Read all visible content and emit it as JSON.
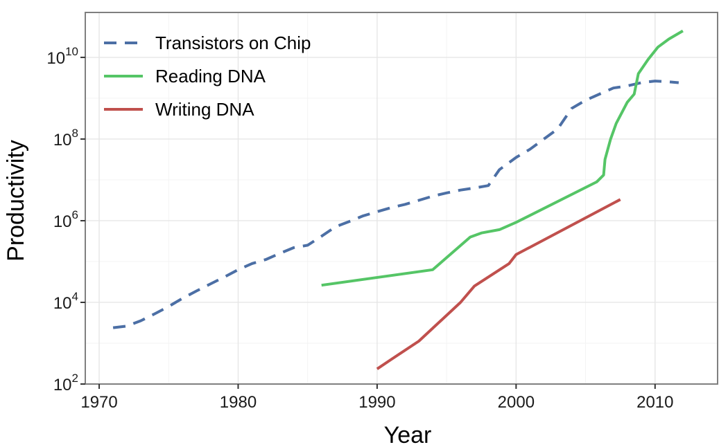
{
  "chart_data": {
    "type": "line",
    "title": "",
    "xlabel": "Year",
    "ylabel": "Productivity",
    "xlim": [
      1969,
      2014.5
    ],
    "ylim": [
      2,
      11.1
    ],
    "yscale": "log10",
    "x_ticks": [
      {
        "value": 1970,
        "label": "1970"
      },
      {
        "value": 1980,
        "label": "1980"
      },
      {
        "value": 1990,
        "label": "1990"
      },
      {
        "value": 2000,
        "label": "2000"
      },
      {
        "value": 2010,
        "label": "2010"
      }
    ],
    "y_ticks": [
      {
        "value": 2,
        "base": "10",
        "exp": "2"
      },
      {
        "value": 4,
        "base": "10",
        "exp": "4"
      },
      {
        "value": 6,
        "base": "10",
        "exp": "6"
      },
      {
        "value": 8,
        "base": "10",
        "exp": "8"
      },
      {
        "value": 10,
        "base": "10",
        "exp": "10"
      }
    ],
    "grid": true,
    "legend": {
      "position": "top-left"
    },
    "series": [
      {
        "name": "Transistors on Chip",
        "color": "#4c6fa5",
        "dash": "dashed",
        "points": [
          [
            1971,
            3.38
          ],
          [
            1972,
            3.42
          ],
          [
            1973,
            3.55
          ],
          [
            1974,
            3.72
          ],
          [
            1975,
            3.9
          ],
          [
            1976,
            4.1
          ],
          [
            1977,
            4.28
          ],
          [
            1978,
            4.45
          ],
          [
            1979,
            4.62
          ],
          [
            1980,
            4.8
          ],
          [
            1981,
            4.95
          ],
          [
            1982,
            5.05
          ],
          [
            1983,
            5.2
          ],
          [
            1984,
            5.34
          ],
          [
            1985,
            5.4
          ],
          [
            1986,
            5.62
          ],
          [
            1987,
            5.85
          ],
          [
            1988,
            5.98
          ],
          [
            1989,
            6.12
          ],
          [
            1990,
            6.22
          ],
          [
            1991,
            6.32
          ],
          [
            1992,
            6.4
          ],
          [
            1993,
            6.5
          ],
          [
            1994,
            6.6
          ],
          [
            1995,
            6.68
          ],
          [
            1996,
            6.75
          ],
          [
            1997,
            6.8
          ],
          [
            1998,
            6.86
          ],
          [
            1998.8,
            7.25
          ],
          [
            2000,
            7.55
          ],
          [
            2001,
            7.75
          ],
          [
            2002,
            8.0
          ],
          [
            2003,
            8.25
          ],
          [
            2004,
            8.75
          ],
          [
            2005,
            8.95
          ],
          [
            2006,
            9.1
          ],
          [
            2007,
            9.25
          ],
          [
            2008,
            9.3
          ],
          [
            2009,
            9.38
          ],
          [
            2010,
            9.42
          ],
          [
            2011,
            9.4
          ],
          [
            2011.7,
            9.38
          ]
        ]
      },
      {
        "name": "Reading DNA",
        "color": "#55c566",
        "dash": "solid",
        "points": [
          [
            1986,
            4.42
          ],
          [
            1994,
            4.8
          ],
          [
            1996.7,
            5.6
          ],
          [
            1997.5,
            5.7
          ],
          [
            1998.8,
            5.78
          ],
          [
            2000,
            5.96
          ],
          [
            2005.8,
            6.95
          ],
          [
            2006.3,
            7.12
          ],
          [
            2006.4,
            7.5
          ],
          [
            2006.8,
            8.0
          ],
          [
            2007.2,
            8.38
          ],
          [
            2008,
            8.9
          ],
          [
            2008.5,
            9.1
          ],
          [
            2008.8,
            9.6
          ],
          [
            2009.5,
            9.95
          ],
          [
            2010.2,
            10.25
          ],
          [
            2011,
            10.45
          ],
          [
            2012,
            10.65
          ]
        ]
      },
      {
        "name": "Writing DNA",
        "color": "#c0504d",
        "dash": "solid",
        "points": [
          [
            1990,
            2.37
          ],
          [
            1991,
            2.6
          ],
          [
            1993,
            3.05
          ],
          [
            1996,
            4.0
          ],
          [
            1997,
            4.4
          ],
          [
            1999.5,
            4.95
          ],
          [
            2000,
            5.17
          ],
          [
            2007.5,
            6.52
          ]
        ]
      }
    ]
  }
}
